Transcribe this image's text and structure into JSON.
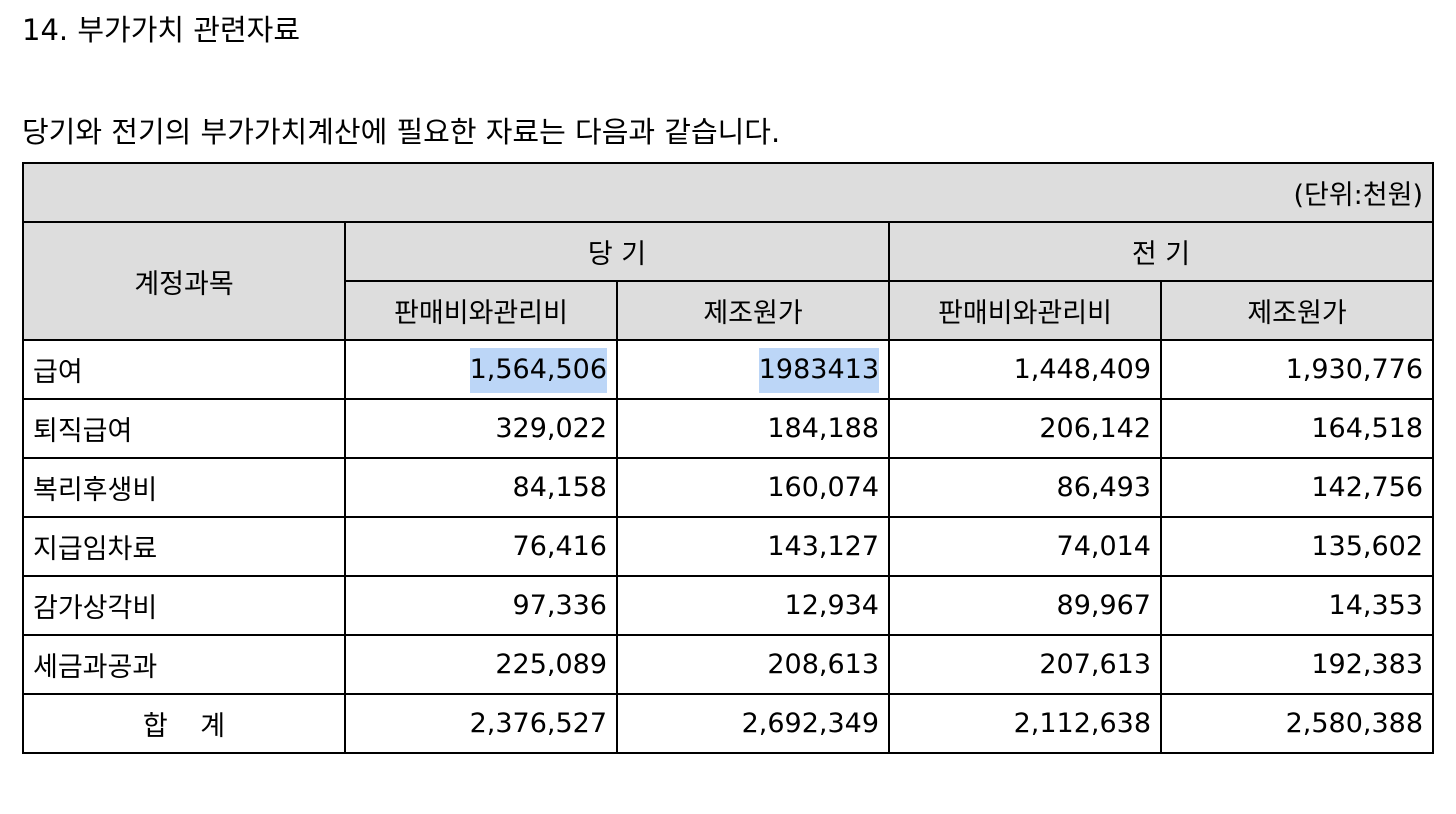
{
  "heading": "14. 부가가치 관련자료",
  "intro": "당기와 전기의 부가가치계산에 필요한 자료는 다음과 같습니다.",
  "table": {
    "unit": "(단위:천원)",
    "account_header": "계정과목",
    "current_period": "당 기",
    "prior_period": "전 기",
    "sga_label": "판매비와관리비",
    "mfg_label": "제조원가",
    "rows": [
      {
        "account": "급여",
        "cur_sga": "1,564,506",
        "cur_mfg": "1983413",
        "prior_sga": "1,448,409",
        "prior_mfg": "1,930,776"
      },
      {
        "account": "퇴직급여",
        "cur_sga": "329,022",
        "cur_mfg": "184,188",
        "prior_sga": "206,142",
        "prior_mfg": "164,518"
      },
      {
        "account": "복리후생비",
        "cur_sga": "84,158",
        "cur_mfg": "160,074",
        "prior_sga": "86,493",
        "prior_mfg": "142,756"
      },
      {
        "account": "지급임차료",
        "cur_sga": "76,416",
        "cur_mfg": "143,127",
        "prior_sga": "74,014",
        "prior_mfg": "135,602"
      },
      {
        "account": "감가상각비",
        "cur_sga": "97,336",
        "cur_mfg": "12,934",
        "prior_sga": "89,967",
        "prior_mfg": "14,353"
      },
      {
        "account": "세금과공과",
        "cur_sga": "225,089",
        "cur_mfg": "208,613",
        "prior_sga": "207,613",
        "prior_mfg": "192,383"
      }
    ],
    "total": {
      "account": "합 계",
      "cur_sga": "2,376,527",
      "cur_mfg": "2,692,349",
      "prior_sga": "2,112,638",
      "prior_mfg": "2,580,388"
    }
  },
  "colors": {
    "header_bg": "#dddddd",
    "selection_highlight": "#bcd6f7"
  }
}
